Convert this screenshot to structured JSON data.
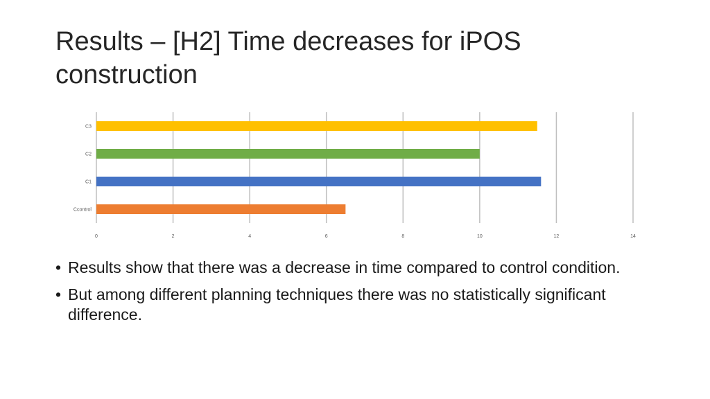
{
  "slide": {
    "title": "Results – [H2] Time decreases for iPOS construction",
    "bullets": [
      "Results show that there was a decrease in time compared to control condition.",
      "But among different planning techniques there was no statistically significant difference."
    ],
    "bullet_symbol": "•"
  },
  "chart_data": {
    "type": "bar",
    "orientation": "horizontal",
    "title": "",
    "xlabel": "",
    "ylabel": "",
    "categories": [
      "C3",
      "C2",
      "C1",
      "Ccontrol"
    ],
    "values": [
      11.5,
      10,
      11.6,
      6.5
    ],
    "colors": [
      "#FFC000",
      "#70AD47",
      "#4472C4",
      "#ED7D31"
    ],
    "xlim": [
      0,
      14
    ],
    "xticks": [
      0,
      2,
      4,
      6,
      8,
      10,
      12,
      14
    ],
    "grid": true,
    "gridline_color": "#BFBFBF",
    "legend": "none"
  }
}
